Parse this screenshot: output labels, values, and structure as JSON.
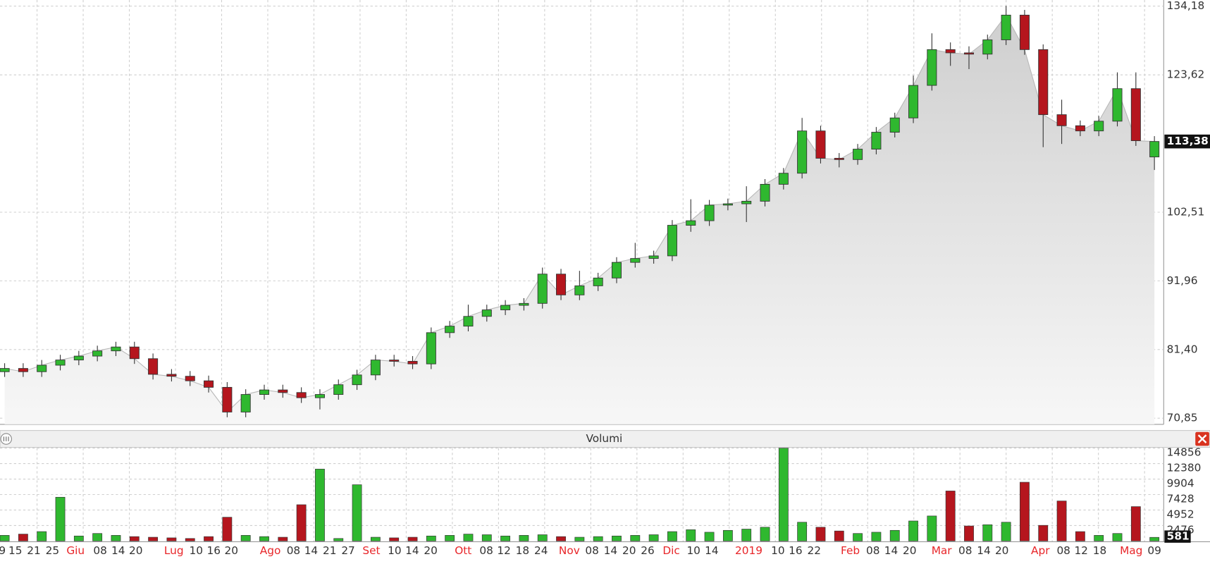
{
  "chart_data": [
    {
      "type": "candlestick",
      "x": [
        1,
        5,
        9,
        13,
        17,
        21,
        25,
        29,
        33,
        37,
        41,
        45,
        49,
        53,
        57,
        61,
        65,
        69,
        73,
        77,
        81,
        85,
        89,
        93,
        97,
        101,
        105,
        109,
        113,
        117,
        121,
        125,
        129,
        133,
        137,
        141,
        145,
        149,
        153,
        157,
        161,
        165,
        169,
        173,
        177,
        181,
        185,
        189,
        193,
        197,
        201,
        205,
        209,
        213,
        217,
        221,
        225,
        229,
        233,
        237,
        241,
        245,
        249
      ],
      "open": [
        78.0,
        78.5,
        78.0,
        79.0,
        79.8,
        80.4,
        81.2,
        81.8,
        80.0,
        77.6,
        77.3,
        76.6,
        75.6,
        71.8,
        74.5,
        75.2,
        74.8,
        74.0,
        74.5,
        76.0,
        77.5,
        79.8,
        79.6,
        79.2,
        84.0,
        85.0,
        86.5,
        87.5,
        88.2,
        88.5,
        93.0,
        89.8,
        91.2,
        92.4,
        94.8,
        95.4,
        95.8,
        100.5,
        101.2,
        103.6,
        103.8,
        104.2,
        106.8,
        108.5,
        115.0,
        110.8,
        110.6,
        112.2,
        114.8,
        117.0,
        122.0,
        127.5,
        127.0,
        126.8,
        129.0,
        132.8,
        127.5,
        117.5,
        115.8,
        115.0,
        116.5,
        121.5,
        111.0
      ],
      "high": [
        79.3,
        79.3,
        79.8,
        80.6,
        81.2,
        82.0,
        82.6,
        82.6,
        80.8,
        78.4,
        78.1,
        77.4,
        76.4,
        75.3,
        76.0,
        76.0,
        75.6,
        75.3,
        76.8,
        78.3,
        80.6,
        80.6,
        80.4,
        84.8,
        85.8,
        88.3,
        88.3,
        89.0,
        89.3,
        94.0,
        93.8,
        93.5,
        93.2,
        95.6,
        97.8,
        96.6,
        101.3,
        104.5,
        104.4,
        104.6,
        106.5,
        107.6,
        109.3,
        117.0,
        115.8,
        111.6,
        113.0,
        115.6,
        117.8,
        123.5,
        130.0,
        128.6,
        128.0,
        129.8,
        134.2,
        133.6,
        128.3,
        119.8,
        116.6,
        117.3,
        124.0,
        124.0,
        114.2
      ],
      "low": [
        77.2,
        77.2,
        77.2,
        78.2,
        79.0,
        79.6,
        80.4,
        79.2,
        76.8,
        76.5,
        75.8,
        74.8,
        71.0,
        71.0,
        73.7,
        74.0,
        73.2,
        72.2,
        73.7,
        75.2,
        76.7,
        78.8,
        78.4,
        78.4,
        83.2,
        84.2,
        85.7,
        86.7,
        87.4,
        87.7,
        89.0,
        89.0,
        90.4,
        91.6,
        94.0,
        94.6,
        95.0,
        99.5,
        100.4,
        102.8,
        101.0,
        103.4,
        106.0,
        107.7,
        110.0,
        109.4,
        109.8,
        111.4,
        114.0,
        116.2,
        121.2,
        125.0,
        124.5,
        126.0,
        128.2,
        126.7,
        112.5,
        113.0,
        114.2,
        114.2,
        115.7,
        112.7,
        109.0
      ],
      "close": [
        78.5,
        78.0,
        79.0,
        79.8,
        80.4,
        81.2,
        81.8,
        80.0,
        77.6,
        77.3,
        76.6,
        75.6,
        71.8,
        74.5,
        75.2,
        74.8,
        74.0,
        74.5,
        76.0,
        77.5,
        79.8,
        79.6,
        79.2,
        84.0,
        85.0,
        86.5,
        87.5,
        88.2,
        88.5,
        93.0,
        89.8,
        91.2,
        92.4,
        94.8,
        95.4,
        95.8,
        100.5,
        101.2,
        103.6,
        103.8,
        104.2,
        106.8,
        108.5,
        115.0,
        110.8,
        110.6,
        112.2,
        114.8,
        117.0,
        122.0,
        127.5,
        127.0,
        126.8,
        129.0,
        132.8,
        127.5,
        117.5,
        115.8,
        115.0,
        116.5,
        121.5,
        113.5,
        113.38
      ],
      "up_color": "#2fb82f",
      "down_color": "#b5161e",
      "area_color": "#d4d4d4",
      "xlim": [
        0,
        251
      ],
      "ylim": [
        69.91,
        135.12
      ],
      "yticks": [
        {
          "value": 134.18,
          "label": "134,18"
        },
        {
          "value": 123.62,
          "label": "123,62"
        },
        {
          "value": 102.51,
          "label": "102,51"
        },
        {
          "value": 91.96,
          "label": "91,96"
        },
        {
          "value": 81.4,
          "label": "81,40"
        },
        {
          "value": 70.85,
          "label": "70,85"
        }
      ],
      "last_price": {
        "value": 113.38,
        "label": "113,38"
      },
      "grid": true
    },
    {
      "type": "bar",
      "title": "Volumi",
      "values": [
        900,
        1100,
        1500,
        7000,
        800,
        1200,
        900,
        700,
        600,
        500,
        400,
        700,
        3800,
        900,
        700,
        600,
        5800,
        11500,
        400,
        9000,
        600,
        500,
        600,
        800,
        900,
        1100,
        1000,
        800,
        900,
        1000,
        700,
        600,
        700,
        800,
        900,
        1000,
        1500,
        1800,
        1400,
        1700,
        1900,
        2200,
        14856,
        3000,
        2200,
        1600,
        1200,
        1400,
        1700,
        3200,
        4000,
        8000,
        2400,
        2600,
        3000,
        9400,
        2500,
        6400,
        1500,
        900,
        1200,
        5500,
        581
      ],
      "xlim": [
        0,
        251
      ],
      "ylim": [
        0,
        14856
      ],
      "yticks": [
        14856,
        12380,
        9904,
        7428,
        4952,
        2476
      ],
      "last_value": 581,
      "xticks": [
        {
          "value": 0.5,
          "label": "9"
        },
        {
          "value": 3.3,
          "label": "15"
        },
        {
          "value": 7.3,
          "label": "21"
        },
        {
          "value": 11.3,
          "label": "25"
        },
        {
          "value": 16.3,
          "label": "Giu",
          "color": "#e8262a"
        },
        {
          "value": 21.6,
          "label": "08"
        },
        {
          "value": 25.5,
          "label": "14"
        },
        {
          "value": 29.3,
          "label": "20"
        },
        {
          "value": 37.5,
          "label": "Lug",
          "color": "#e8262a"
        },
        {
          "value": 42.3,
          "label": "10"
        },
        {
          "value": 46.1,
          "label": "16"
        },
        {
          "value": 49.9,
          "label": "20"
        },
        {
          "value": 58.3,
          "label": "Ago",
          "color": "#e8262a"
        },
        {
          "value": 63.3,
          "label": "08"
        },
        {
          "value": 67.1,
          "label": "14"
        },
        {
          "value": 71.1,
          "label": "21"
        },
        {
          "value": 75.1,
          "label": "27"
        },
        {
          "value": 80.1,
          "label": "Set",
          "color": "#e8262a"
        },
        {
          "value": 85.1,
          "label": "10"
        },
        {
          "value": 88.9,
          "label": "14"
        },
        {
          "value": 92.9,
          "label": "20"
        },
        {
          "value": 99.9,
          "label": "Ott",
          "color": "#e8262a"
        },
        {
          "value": 104.9,
          "label": "08"
        },
        {
          "value": 108.7,
          "label": "12"
        },
        {
          "value": 112.7,
          "label": "18"
        },
        {
          "value": 116.7,
          "label": "24"
        },
        {
          "value": 122.8,
          "label": "Nov",
          "color": "#e8262a"
        },
        {
          "value": 127.7,
          "label": "08"
        },
        {
          "value": 131.7,
          "label": "14"
        },
        {
          "value": 135.7,
          "label": "20"
        },
        {
          "value": 139.7,
          "label": "26"
        },
        {
          "value": 144.8,
          "label": "Dic",
          "color": "#e8262a"
        },
        {
          "value": 149.6,
          "label": "10"
        },
        {
          "value": 153.5,
          "label": "14"
        },
        {
          "value": 161.5,
          "label": "2019",
          "color": "#e8262a"
        },
        {
          "value": 167.8,
          "label": "10"
        },
        {
          "value": 171.6,
          "label": "16"
        },
        {
          "value": 175.6,
          "label": "22"
        },
        {
          "value": 183.4,
          "label": "Feb",
          "color": "#e8262a"
        },
        {
          "value": 188.3,
          "label": "08"
        },
        {
          "value": 192.2,
          "label": "14"
        },
        {
          "value": 196.2,
          "label": "20"
        },
        {
          "value": 203.1,
          "label": "Mar",
          "color": "#e8262a"
        },
        {
          "value": 208.2,
          "label": "08"
        },
        {
          "value": 212.2,
          "label": "14"
        },
        {
          "value": 216.1,
          "label": "20"
        },
        {
          "value": 224.4,
          "label": "Apr",
          "color": "#e8262a"
        },
        {
          "value": 229.4,
          "label": "08"
        },
        {
          "value": 233.2,
          "label": "12"
        },
        {
          "value": 237.2,
          "label": "18"
        },
        {
          "value": 244.0,
          "label": "Mag",
          "color": "#e8262a"
        },
        {
          "value": 249.0,
          "label": "09"
        }
      ],
      "grid": true
    }
  ]
}
